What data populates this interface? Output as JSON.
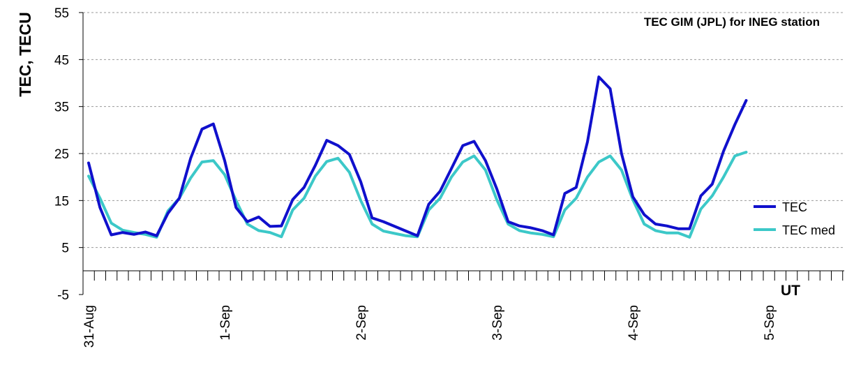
{
  "chart_data": {
    "type": "line",
    "title": "TEC GIM (JPL) for INEG station",
    "ylabel": "TEC, TECU",
    "xlabel": "UT",
    "ylim": [
      -5,
      55
    ],
    "yticks": [
      "-5",
      "5",
      "15",
      "25",
      "35",
      "45",
      "55"
    ],
    "grid": "horizontal dashed",
    "legend_position": "right",
    "x_interval_hours": 2,
    "x_labels": [
      {
        "hour": 0,
        "label": "31-Aug"
      },
      {
        "hour": 24,
        "label": "1-Sep"
      },
      {
        "hour": 48,
        "label": "2-Sep"
      },
      {
        "hour": 72,
        "label": "3-Sep"
      },
      {
        "hour": 96,
        "label": "4-Sep"
      },
      {
        "hour": 120,
        "label": "5-Sep"
      }
    ],
    "series": [
      {
        "name": "TEC",
        "color": "#1010cc",
        "values": [
          23,
          13.5,
          7.7,
          8.2,
          7.8,
          8.3,
          7.5,
          12.3,
          15.5,
          24,
          30.2,
          31.3,
          23.5,
          13.5,
          10.5,
          11.5,
          9.5,
          9.6,
          15.2,
          17.8,
          22.5,
          27.8,
          26.7,
          24.8,
          19,
          11.3,
          10.5,
          9.5,
          8.5,
          7.5,
          14.2,
          17,
          21.8,
          26.7,
          27.6,
          23.5,
          17.5,
          10.5,
          9.6,
          9.2,
          8.6,
          7.7,
          16.5,
          17.8,
          27.5,
          41.3,
          38.8,
          25,
          15.8,
          12,
          10,
          9.6,
          9,
          9,
          16,
          18.5,
          25.5,
          31.2,
          36.3
        ]
      },
      {
        "name": "TEC med",
        "color": "#3cc8c8",
        "values": [
          20.2,
          15.5,
          10.2,
          8.7,
          8.2,
          7.8,
          7.2,
          12.8,
          15.5,
          19.8,
          23.2,
          23.5,
          20.5,
          15,
          10,
          8.6,
          8.2,
          7.3,
          13,
          15.5,
          20.2,
          23.3,
          24,
          21,
          15,
          10,
          8.5,
          8,
          7.5,
          7.3,
          13,
          15.5,
          20,
          23.2,
          24.5,
          21.5,
          15.2,
          10,
          8.6,
          8.1,
          7.8,
          7.3,
          13,
          15.5,
          20,
          23.2,
          24.5,
          21.5,
          15.2,
          10,
          8.6,
          8.1,
          8.1,
          7.2,
          13.2,
          16,
          20,
          24.5,
          25.3
        ]
      }
    ]
  }
}
